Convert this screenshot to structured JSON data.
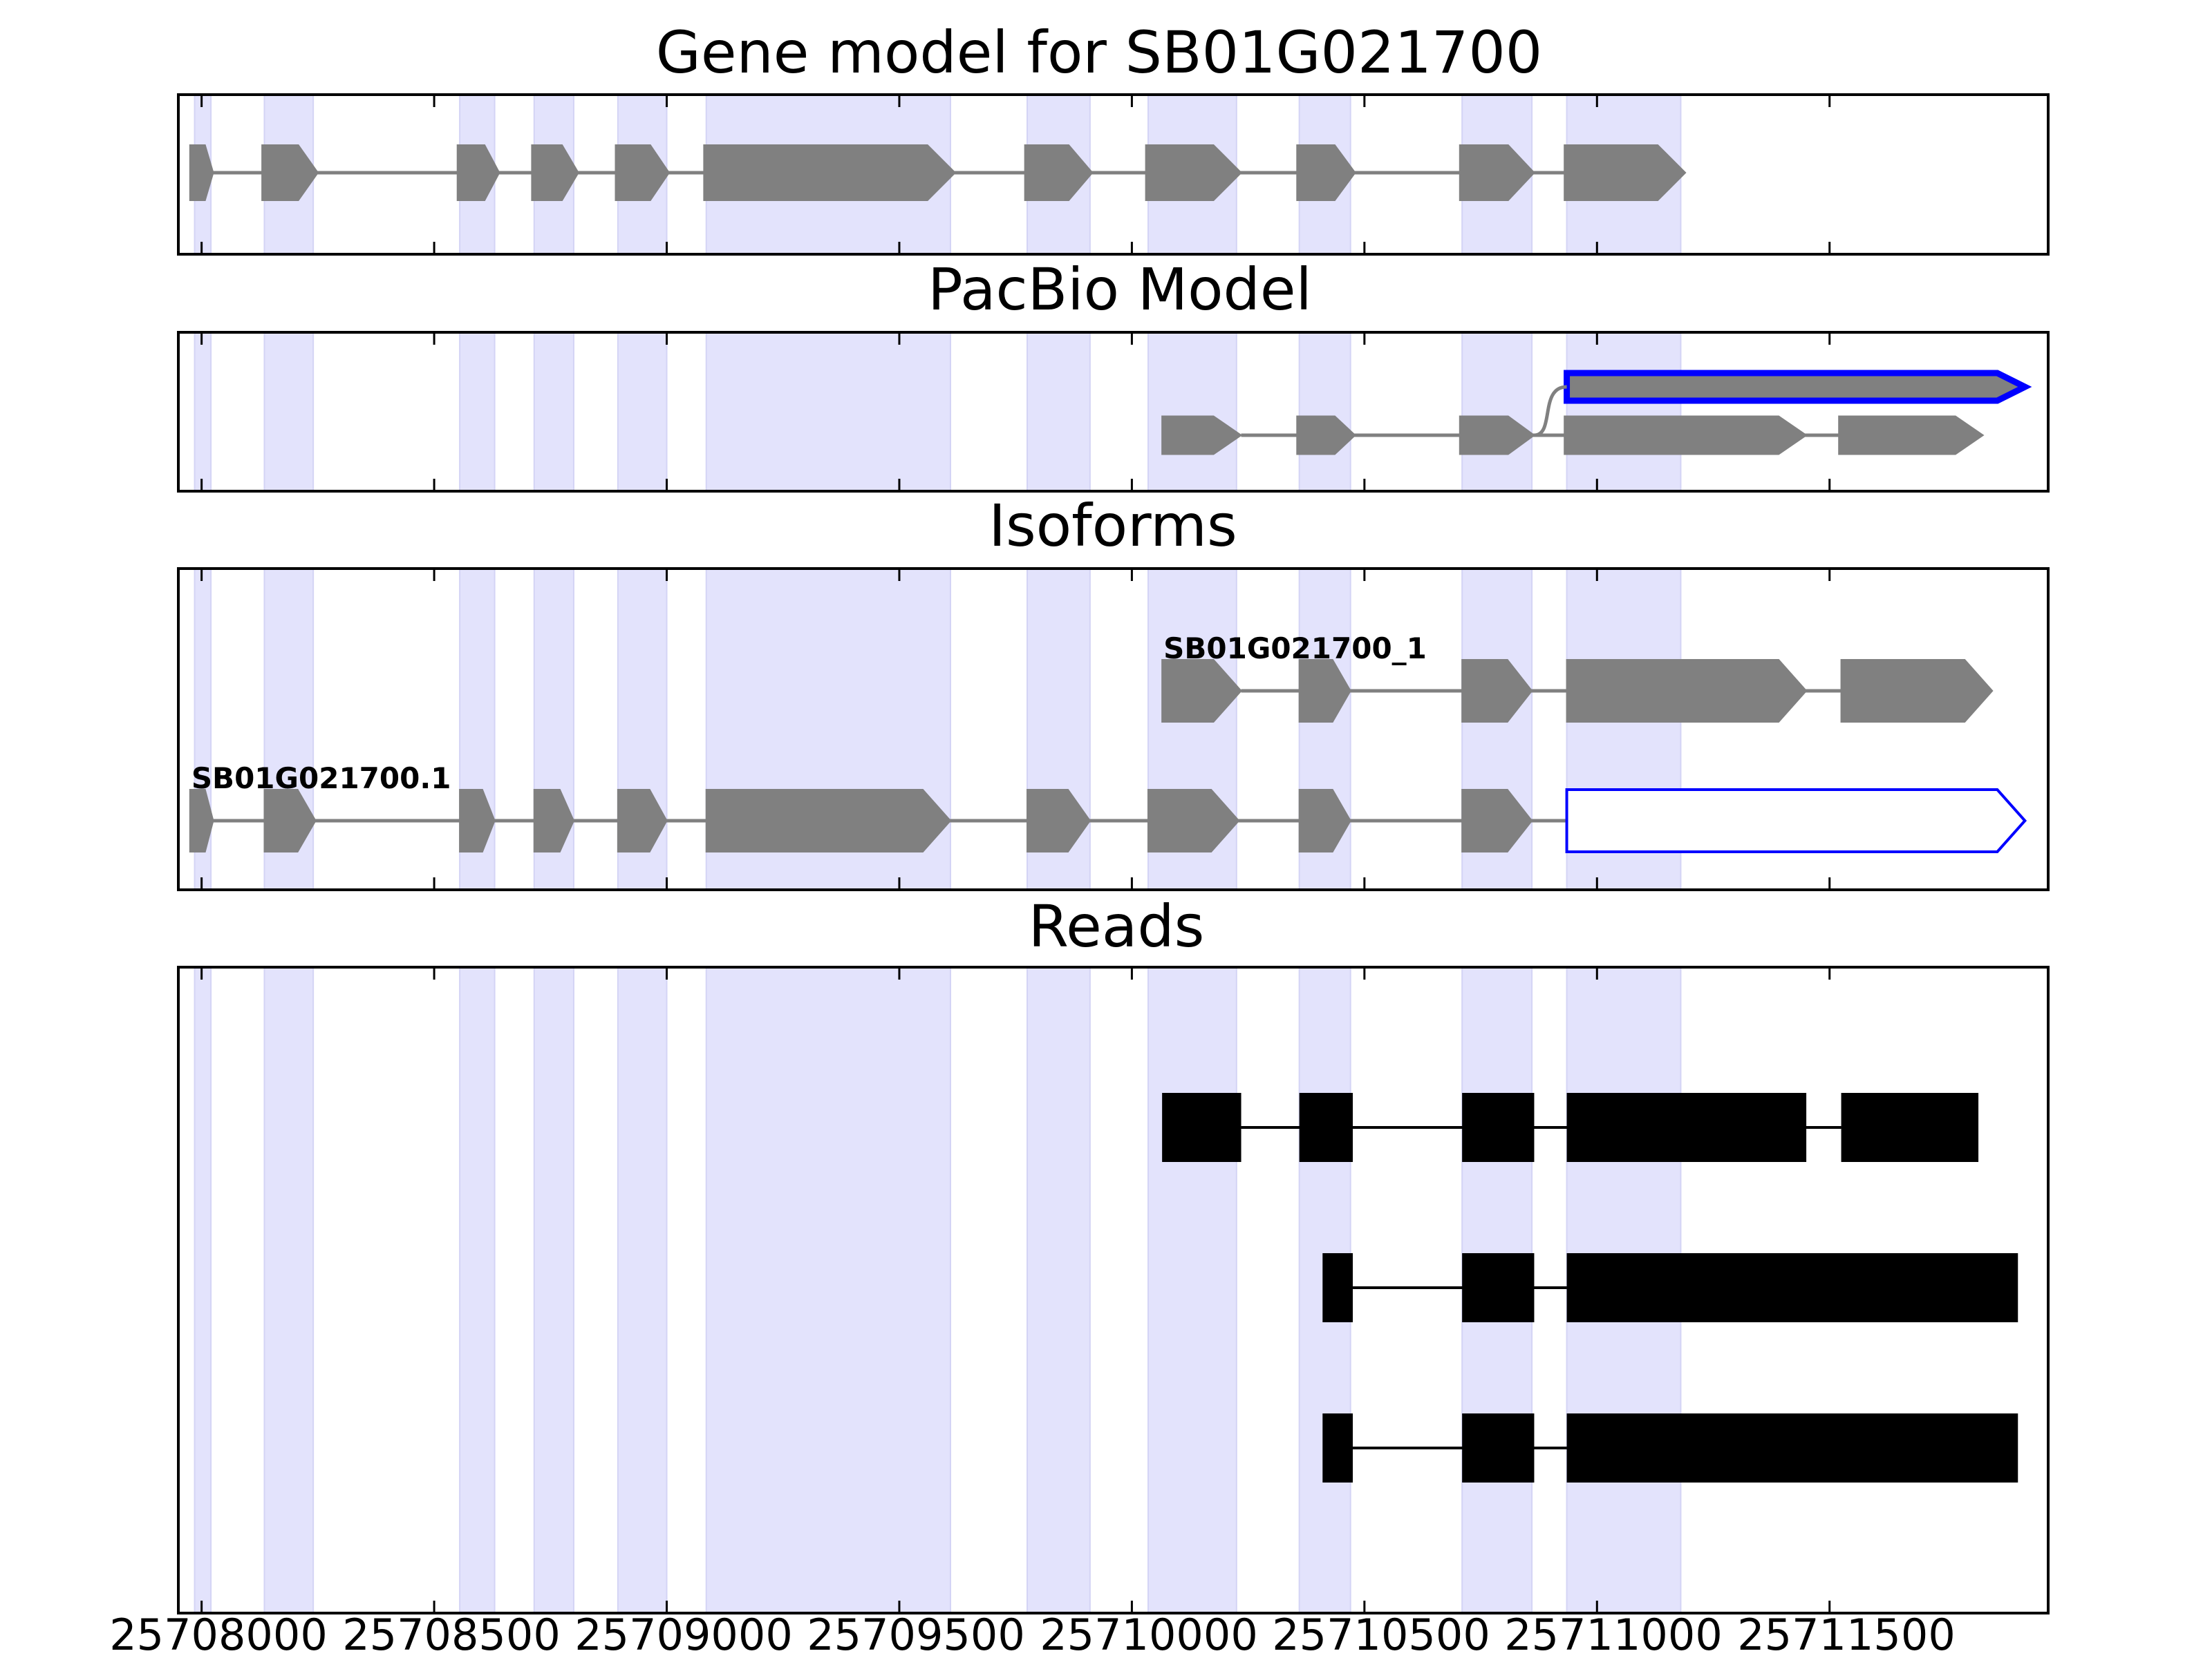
{
  "chart_data": {
    "type": "gene-model-tracks",
    "xlim": [
      25707950,
      25711970
    ],
    "x_ticks": [
      25708000,
      25708500,
      25709000,
      25709500,
      25710000,
      25710500,
      25711000,
      25711500
    ],
    "tick_labels": [
      "25708000",
      "25708500",
      "25709000",
      "25709500",
      "25710000",
      "25710500",
      "25711000",
      "25711500"
    ],
    "exon_regions": [
      [
        25707985,
        25708020
      ],
      [
        25708135,
        25708240
      ],
      [
        25708555,
        25708630
      ],
      [
        25708715,
        25708800
      ],
      [
        25708895,
        25709000
      ],
      [
        25709085,
        25709610
      ],
      [
        25709775,
        25709910
      ],
      [
        25710035,
        25710225
      ],
      [
        25710360,
        25710470
      ],
      [
        25710710,
        25710860
      ],
      [
        25710935,
        25711180
      ]
    ],
    "panels": [
      {
        "title": "Gene model for SB01G021700",
        "tracks": [
          {
            "label": "",
            "highlight": false,
            "exons": [
              [
                25707975,
                25708025
              ],
              [
                25708130,
                25708250
              ],
              [
                25708550,
                25708640
              ],
              [
                25708710,
                25708810
              ],
              [
                25708890,
                25709005
              ],
              [
                25709080,
                25709620
              ],
              [
                25709770,
                25709915
              ],
              [
                25710030,
                25710235
              ],
              [
                25710355,
                25710480
              ],
              [
                25710705,
                25710865
              ],
              [
                25710930,
                25711190
              ]
            ]
          }
        ]
      },
      {
        "title": "PacBio Model",
        "tracks": [
          {
            "label": "",
            "highlight": false,
            "exons": [
              [
                25710065,
                25710235
              ],
              [
                25710355,
                25710480
              ],
              [
                25710705,
                25710865
              ],
              [
                25710930,
                25711450
              ],
              [
                25711520,
                25711830
              ]
            ]
          },
          {
            "label": "",
            "highlight": true,
            "exons": [
              [
                25710935,
                25711920
              ]
            ]
          }
        ]
      },
      {
        "title": "Isoforms",
        "tracks": [
          {
            "label": "SB01G021700.1",
            "highlight": false,
            "highlight_last": true,
            "exons": [
              [
                25707975,
                25708025
              ],
              [
                25708135,
                25708245
              ],
              [
                25708555,
                25708630
              ],
              [
                25708715,
                25708800
              ],
              [
                25708895,
                25709000
              ],
              [
                25709085,
                25709610
              ],
              [
                25709775,
                25709910
              ],
              [
                25710035,
                25710230
              ],
              [
                25710360,
                25710470
              ],
              [
                25710710,
                25710860
              ],
              [
                25710935,
                25711920
              ]
            ]
          },
          {
            "label": "SB01G021700_1",
            "highlight": false,
            "exons": [
              [
                25710065,
                25710235
              ],
              [
                25710360,
                25710470
              ],
              [
                25710710,
                25710860
              ],
              [
                25710935,
                25711450
              ],
              [
                25711525,
                25711850
              ]
            ]
          }
        ]
      },
      {
        "title": "Reads",
        "tracks": [
          {
            "exons": [
              [
                25710065,
                25710235
              ],
              [
                25710360,
                25710475
              ],
              [
                25710710,
                25710865
              ],
              [
                25710935,
                25711450
              ],
              [
                25711525,
                25711820
              ]
            ]
          },
          {
            "exons": [
              [
                25710410,
                25710475
              ],
              [
                25710710,
                25710865
              ],
              [
                25710935,
                25711905
              ]
            ]
          },
          {
            "exons": [
              [
                25710410,
                25710475
              ],
              [
                25710710,
                25710865
              ],
              [
                25710935,
                25711905
              ]
            ]
          }
        ]
      }
    ]
  }
}
